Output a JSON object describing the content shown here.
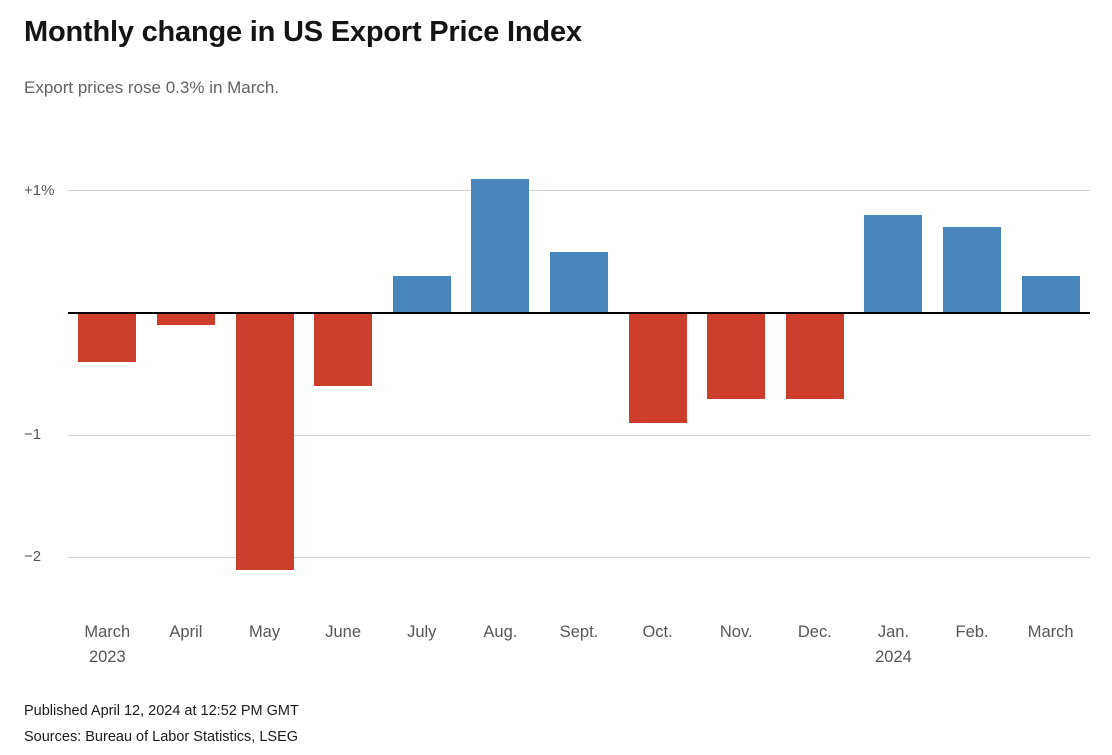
{
  "header": {
    "title": "Monthly change in US Export Price Index",
    "subtitle": "Export prices rose 0.3% in March."
  },
  "chart_data": {
    "type": "bar",
    "title": "Monthly change in US Export Price Index",
    "subtitle": "Export prices rose 0.3% in March.",
    "categories": [
      "March",
      "April",
      "May",
      "June",
      "July",
      "Aug.",
      "Sept.",
      "Oct.",
      "Nov.",
      "Dec.",
      "Jan.",
      "Feb.",
      "March"
    ],
    "category_sublabels": {
      "0": "2023",
      "10": "2024"
    },
    "values": [
      -0.4,
      -0.1,
      -2.1,
      -0.6,
      0.3,
      1.1,
      0.5,
      -0.9,
      -0.7,
      -0.7,
      0.8,
      0.7,
      0.3
    ],
    "xlabel": "",
    "ylabel": "",
    "ylim": [
      -2.25,
      1.35
    ],
    "yticks": [
      {
        "value": 1,
        "label": "+1%"
      },
      {
        "value": -1,
        "label": "−1"
      },
      {
        "value": -2,
        "label": "−2"
      }
    ],
    "grid": true,
    "legend": "none",
    "positive_color": "#4a86be",
    "negative_color": "#cc3d2c",
    "zero_line_color": "#000000",
    "gridline_color": "#d2d2d2"
  },
  "footer": {
    "published": "Published April 12, 2024 at 12:52 PM GMT",
    "sources": "Sources: Bureau of Labor Statistics, LSEG"
  }
}
